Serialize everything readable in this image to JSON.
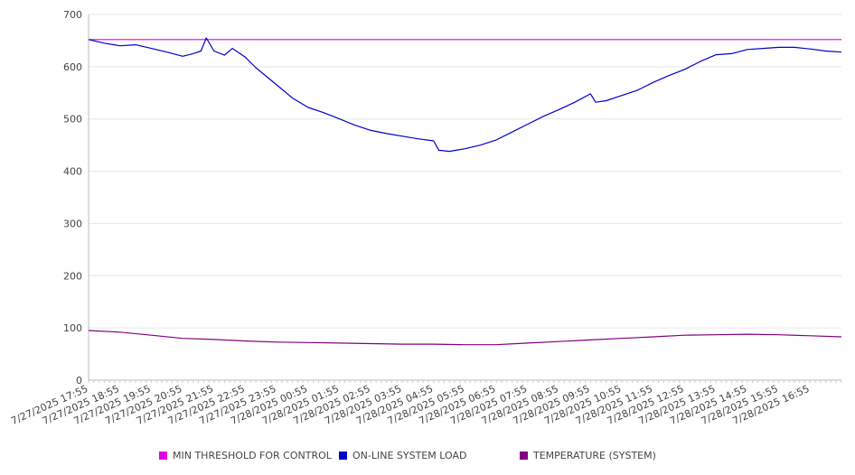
{
  "chart_data": {
    "type": "line",
    "title": "",
    "xlabel": "",
    "ylabel": "",
    "ylim": [
      0,
      700
    ],
    "yticks": [
      0,
      100,
      200,
      300,
      400,
      500,
      600,
      700
    ],
    "xlim": [
      "7/27/2025 17:55",
      "7/28/2025 17:55"
    ],
    "xtick_labels": [
      "7/27/2025 17:55",
      "7/27/2025 18:55",
      "7/27/2025 19:55",
      "7/27/2025 20:55",
      "7/27/2025 21:55",
      "7/27/2025 22:55",
      "7/27/2025 23:55",
      "7/28/2025 00:55",
      "7/28/2025 01:55",
      "7/28/2025 02:55",
      "7/28/2025 03:55",
      "7/28/2025 04:55",
      "7/28/2025 05:55",
      "7/28/2025 06:55",
      "7/28/2025 07:55",
      "7/28/2025 08:55",
      "7/28/2025 09:55",
      "7/28/2025 10:55",
      "7/28/2025 11:55",
      "7/28/2025 12:55",
      "7/28/2025 13:55",
      "7/28/2025 14:55",
      "7/28/2025 15:55",
      "7/28/2025 16:55"
    ],
    "grid": true,
    "legend_position": "bottom",
    "series": [
      {
        "name": "MIN THRESHOLD FOR CONTROL",
        "color": "#e000e0",
        "points": [
          [
            "7/27/2025 17:55",
            652
          ],
          [
            "7/28/2025 17:55",
            652
          ]
        ]
      },
      {
        "name": "ON-LINE SYSTEM LOAD",
        "color": "#0000cc",
        "points": [
          [
            "7/27/2025 17:55",
            652
          ],
          [
            "7/27/2025 18:25",
            645
          ],
          [
            "7/27/2025 18:55",
            640
          ],
          [
            "7/27/2025 19:25",
            642
          ],
          [
            "7/27/2025 19:55",
            635
          ],
          [
            "7/27/2025 20:25",
            628
          ],
          [
            "7/27/2025 20:55",
            620
          ],
          [
            "7/27/2025 21:15",
            625
          ],
          [
            "7/27/2025 21:30",
            630
          ],
          [
            "7/27/2025 21:40",
            655
          ],
          [
            "7/27/2025 21:55",
            630
          ],
          [
            "7/27/2025 22:15",
            622
          ],
          [
            "7/27/2025 22:30",
            635
          ],
          [
            "7/27/2025 22:55",
            618
          ],
          [
            "7/27/2025 23:15",
            598
          ],
          [
            "7/27/2025 23:55",
            565
          ],
          [
            "7/28/2025 00:25",
            540
          ],
          [
            "7/28/2025 00:55",
            522
          ],
          [
            "7/28/2025 01:25",
            512
          ],
          [
            "7/28/2025 01:55",
            500
          ],
          [
            "7/28/2025 02:25",
            488
          ],
          [
            "7/28/2025 02:55",
            478
          ],
          [
            "7/28/2025 03:25",
            472
          ],
          [
            "7/28/2025 03:55",
            467
          ],
          [
            "7/28/2025 04:25",
            462
          ],
          [
            "7/28/2025 04:55",
            458
          ],
          [
            "7/28/2025 05:05",
            440
          ],
          [
            "7/28/2025 05:25",
            438
          ],
          [
            "7/28/2025 05:55",
            443
          ],
          [
            "7/28/2025 06:25",
            450
          ],
          [
            "7/28/2025 06:55",
            460
          ],
          [
            "7/28/2025 07:25",
            475
          ],
          [
            "7/28/2025 07:55",
            490
          ],
          [
            "7/28/2025 08:25",
            505
          ],
          [
            "7/28/2025 08:55",
            518
          ],
          [
            "7/28/2025 09:25",
            532
          ],
          [
            "7/28/2025 09:55",
            548
          ],
          [
            "7/28/2025 10:05",
            532
          ],
          [
            "7/28/2025 10:25",
            535
          ],
          [
            "7/28/2025 10:55",
            545
          ],
          [
            "7/28/2025 11:25",
            555
          ],
          [
            "7/28/2025 11:55",
            570
          ],
          [
            "7/28/2025 12:25",
            583
          ],
          [
            "7/28/2025 12:55",
            595
          ],
          [
            "7/28/2025 13:25",
            610
          ],
          [
            "7/28/2025 13:55",
            623
          ],
          [
            "7/28/2025 14:25",
            625
          ],
          [
            "7/28/2025 14:55",
            633
          ],
          [
            "7/28/2025 15:25",
            635
          ],
          [
            "7/28/2025 15:55",
            637
          ],
          [
            "7/28/2025 16:25",
            637
          ],
          [
            "7/28/2025 16:55",
            634
          ],
          [
            "7/28/2025 17:25",
            630
          ],
          [
            "7/28/2025 17:55",
            628
          ]
        ]
      },
      {
        "name": "TEMPERATURE (SYSTEM)",
        "color": "#800080",
        "points": [
          [
            "7/27/2025 17:55",
            95
          ],
          [
            "7/27/2025 18:55",
            92
          ],
          [
            "7/27/2025 19:55",
            86
          ],
          [
            "7/27/2025 20:55",
            80
          ],
          [
            "7/27/2025 21:55",
            78
          ],
          [
            "7/27/2025 22:55",
            75
          ],
          [
            "7/27/2025 23:55",
            73
          ],
          [
            "7/28/2025 00:55",
            72
          ],
          [
            "7/28/2025 01:55",
            71
          ],
          [
            "7/28/2025 02:55",
            70
          ],
          [
            "7/28/2025 03:55",
            69
          ],
          [
            "7/28/2025 04:55",
            69
          ],
          [
            "7/28/2025 05:55",
            68
          ],
          [
            "7/28/2025 06:55",
            68
          ],
          [
            "7/28/2025 07:55",
            71
          ],
          [
            "7/28/2025 08:55",
            74
          ],
          [
            "7/28/2025 09:55",
            77
          ],
          [
            "7/28/2025 10:55",
            80
          ],
          [
            "7/28/2025 11:55",
            83
          ],
          [
            "7/28/2025 12:55",
            86
          ],
          [
            "7/28/2025 13:55",
            87
          ],
          [
            "7/28/2025 14:55",
            88
          ],
          [
            "7/28/2025 15:55",
            87
          ],
          [
            "7/28/2025 16:55",
            85
          ],
          [
            "7/28/2025 17:55",
            83
          ]
        ]
      }
    ]
  }
}
